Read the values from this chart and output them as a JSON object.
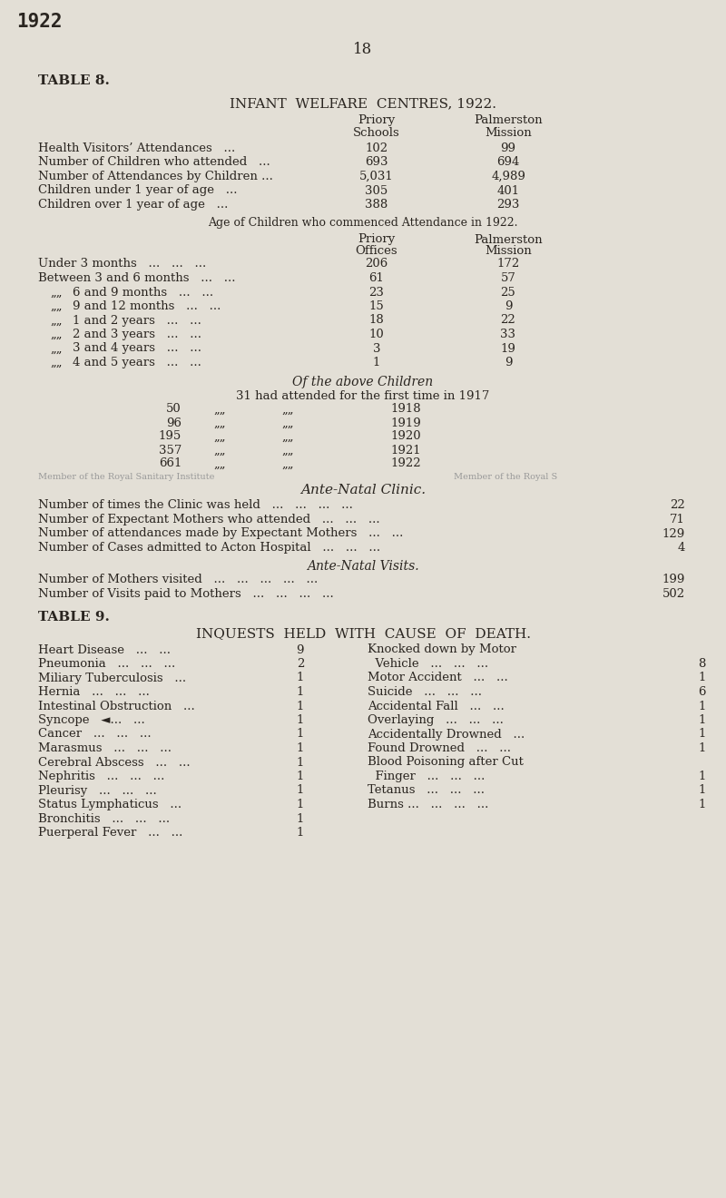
{
  "bg_color": "#e3dfd6",
  "text_color": "#2a2520",
  "page_num": "18",
  "year_stamp": "1922",
  "table8_title": "TABLE 8.",
  "table8_subtitle": "INFANT  WELFARE  CENTRES, 1922.",
  "priory_schools": [
    "Priory",
    "Schools"
  ],
  "palmerston_mission": [
    "Palmerston",
    "Mission"
  ],
  "table8_rows": [
    [
      "Health Visitors’ Attendances   ...",
      "102",
      "99"
    ],
    [
      "Number of Children who attended   ...",
      "693",
      "694"
    ],
    [
      "Number of Attendances by Children ...",
      "5,031",
      "4,989"
    ],
    [
      "Children under 1 year of age   ...",
      "305",
      "401"
    ],
    [
      "Children over 1 year of age   ...",
      "388",
      "293"
    ]
  ],
  "age_title": "Age of Children who commenced Attendance in 1922.",
  "priory_offices": [
    "Priory",
    "Offices"
  ],
  "age_rows": [
    [
      "Under 3 months   ...   ...   ...",
      "206",
      "172"
    ],
    [
      "Between 3 and 6 months   ...   ...",
      "61",
      "57"
    ],
    [
      "„   6 and 9 months   ...   ...",
      "23",
      "25"
    ],
    [
      "„   9 and 12 months   ...   ...",
      "15",
      "9"
    ],
    [
      "„   1 and 2 years   ...   ...",
      "18",
      "22"
    ],
    [
      "„   2 and 3 years   ...   ...",
      "10",
      "33"
    ],
    [
      "„   3 and 4 years   ...   ...",
      "3",
      "19"
    ],
    [
      "„   4 and 5 years   ...   ...",
      "1",
      "9"
    ]
  ],
  "above_title": "Of the above Children",
  "above_rows": [
    [
      "31",
      "had attended for the first time in",
      "1917"
    ],
    [
      "50",
      "",
      "1918"
    ],
    [
      "96",
      "",
      "1919"
    ],
    [
      "195",
      "",
      "1920"
    ],
    [
      "357",
      "",
      "1921"
    ],
    [
      "661",
      "",
      "1922"
    ]
  ],
  "watermark_left": "Member of the Royal Sanitary Institute",
  "watermark_right": "Member of the Royal S",
  "ante_natal_clinic_title": "Ante-Natal Clinic.",
  "ante_natal_rows": [
    [
      "Number of times the Clinic was held   ...   ...   ...   ...",
      "22"
    ],
    [
      "Number of Expectant Mothers who attended   ...   ...   ...",
      "71"
    ],
    [
      "Number of attendances made by Expectant Mothers   ...   ...",
      "129"
    ],
    [
      "Number of Cases admitted to Acton Hospital   ...   ...   ...",
      "4"
    ]
  ],
  "ante_natal_visits_title": "Ante-Natal Visits.",
  "ante_natal_visits_rows": [
    [
      "Number of Mothers visited   ...   ...   ...   ...   ...",
      "199"
    ],
    [
      "Number of Visits paid to Mothers   ...   ...   ...   ...",
      "502"
    ]
  ],
  "table9_title": "TABLE 9.",
  "table9_subtitle": "INQUESTS  HELD  WITH  CAUSE  OF  DEATH.",
  "table9_left": [
    [
      "Heart Disease   ...   ...",
      "9"
    ],
    [
      "Pneumonia   ...   ...   ...",
      "2"
    ],
    [
      "Miliary Tuberculosis   ...",
      "1"
    ],
    [
      "Hernia   ...   ...   ...",
      "1"
    ],
    [
      "Intestinal Obstruction   ...",
      "1"
    ],
    [
      "Syncope   ...   ◄...   ...",
      "1"
    ],
    [
      "Cancer   ...   ...   ...",
      "1"
    ],
    [
      "Marasmus   ...   ...   ...",
      "1"
    ],
    [
      "Cerebral Abscess   ...   ...",
      "1"
    ],
    [
      "Nephritis   ...   ...   ...",
      "1"
    ],
    [
      "Pleurisy   ...   ...   ...",
      "1"
    ],
    [
      "Status Lymphaticus   ...",
      "1"
    ],
    [
      "Bronchitis   ...   ...   ...",
      "1"
    ],
    [
      "Puerperal Fever   ...   ...",
      "1"
    ]
  ],
  "table9_right": [
    [
      "Knocked down by Motor",
      ""
    ],
    [
      "  Vehicle   ...   ...   ...",
      "8"
    ],
    [
      "Motor Accident   ...   ...",
      "1"
    ],
    [
      "Suicide   ...   ...   ...",
      "6"
    ],
    [
      "Accidental Fall   ...   ...",
      "1"
    ],
    [
      "Overlaying   ...   ...   ...",
      "1"
    ],
    [
      "Accidentally Drowned   ...",
      "1"
    ],
    [
      "Found Drowned   ...   ...",
      "1"
    ],
    [
      "Blood Poisoning after Cut",
      ""
    ],
    [
      "  Finger   ...   ...   ...",
      "1"
    ],
    [
      "Tetanus   ...   ...   ...",
      "1"
    ],
    [
      "Burns ...   ...   ...   ...",
      "1"
    ]
  ]
}
